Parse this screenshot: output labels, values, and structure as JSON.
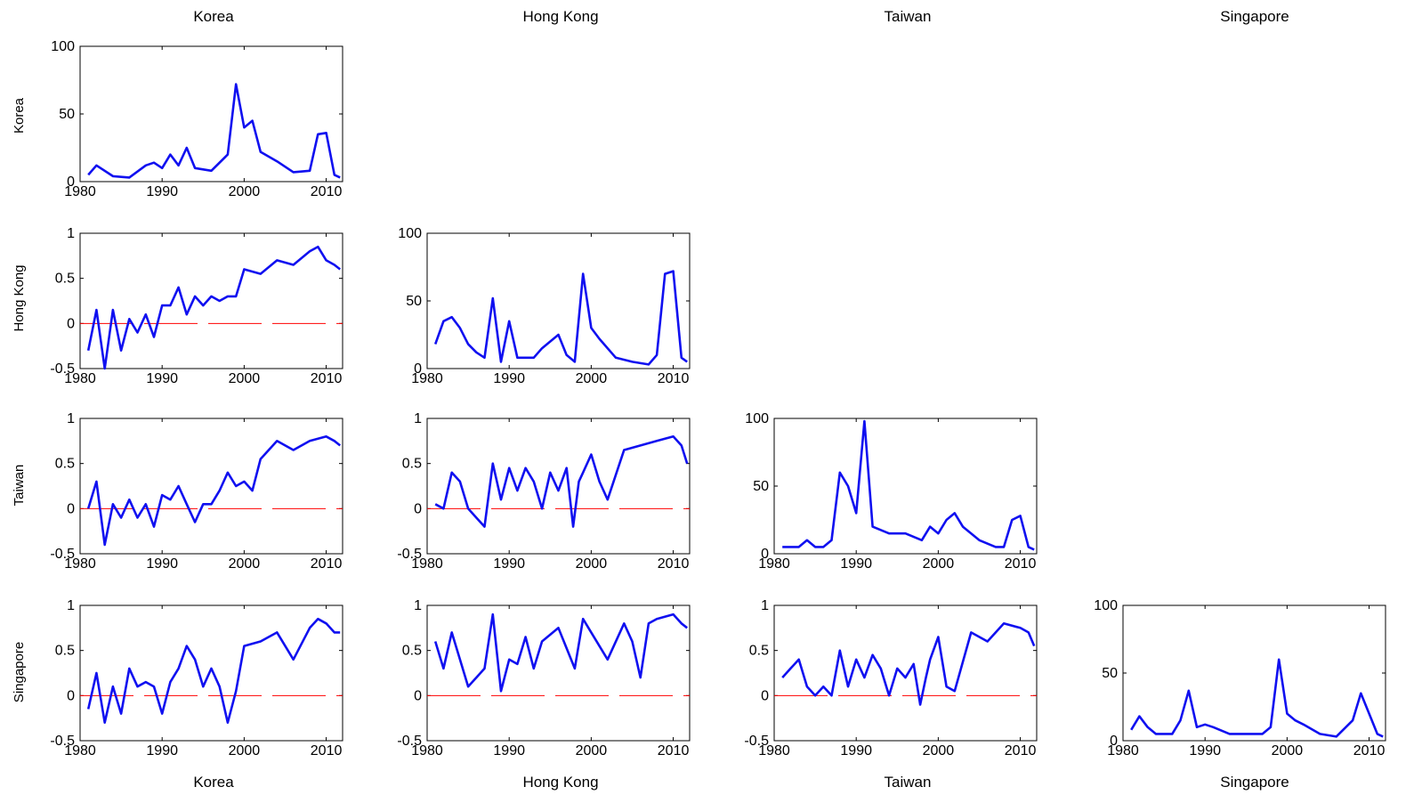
{
  "column_titles": [
    "Korea",
    "Hong Kong",
    "Taiwan",
    "Singapore"
  ],
  "row_labels": [
    "Korea",
    "Hong Kong",
    "Taiwan",
    "Singapore"
  ],
  "bottom_labels": [
    "Korea",
    "Hong Kong",
    "Taiwan",
    "Singapore"
  ],
  "colors": {
    "series": "#1010f0",
    "zero_line": "#ff0000",
    "axis": "#000000"
  },
  "chart_data": [
    {
      "row": 0,
      "col": 0,
      "type": "line",
      "variable": "Korea",
      "x_ticks": [
        "1980",
        "1990",
        "2000",
        "2010"
      ],
      "y_ticks": [
        "0",
        "50",
        "100"
      ],
      "ylim": [
        0,
        100
      ],
      "xlim": [
        1980,
        2012
      ],
      "zero_line": false,
      "x": [
        1981,
        1982,
        1984,
        1986,
        1988,
        1989,
        1990,
        1991,
        1992,
        1993,
        1994,
        1996,
        1998,
        1999,
        2000,
        2001,
        2002,
        2004,
        2006,
        2008,
        2009,
        2010,
        2011,
        2011.7
      ],
      "y": [
        5,
        12,
        4,
        3,
        12,
        14,
        10,
        20,
        12,
        25,
        10,
        8,
        20,
        72,
        40,
        45,
        22,
        15,
        7,
        8,
        35,
        36,
        5,
        3
      ]
    },
    {
      "row": 1,
      "col": 0,
      "type": "line",
      "variable": "Korea / Hong Kong",
      "x_ticks": [
        "1980",
        "1990",
        "2000",
        "2010"
      ],
      "y_ticks": [
        "-0.5",
        "0",
        "0.5",
        "1"
      ],
      "ylim": [
        -0.5,
        1
      ],
      "xlim": [
        1980,
        2012
      ],
      "zero_line": true,
      "x": [
        1981,
        1982,
        1983,
        1984,
        1985,
        1986,
        1987,
        1988,
        1989,
        1990,
        1991,
        1992,
        1993,
        1994,
        1995,
        1996,
        1997,
        1998,
        1999,
        2000,
        2002,
        2004,
        2006,
        2008,
        2009,
        2010,
        2011,
        2011.7
      ],
      "y": [
        -0.3,
        0.15,
        -0.5,
        0.15,
        -0.3,
        0.05,
        -0.1,
        0.1,
        -0.15,
        0.2,
        0.2,
        0.4,
        0.1,
        0.3,
        0.2,
        0.3,
        0.25,
        0.3,
        0.3,
        0.6,
        0.55,
        0.7,
        0.65,
        0.8,
        0.85,
        0.7,
        0.65,
        0.6
      ]
    },
    {
      "row": 1,
      "col": 1,
      "type": "line",
      "variable": "Hong Kong",
      "x_ticks": [
        "1980",
        "1990",
        "2000",
        "2010"
      ],
      "y_ticks": [
        "0",
        "50",
        "100"
      ],
      "ylim": [
        0,
        100
      ],
      "xlim": [
        1980,
        2012
      ],
      "zero_line": false,
      "x": [
        1981,
        1982,
        1983,
        1984,
        1985,
        1986,
        1987,
        1988,
        1989,
        1990,
        1991,
        1993,
        1994,
        1996,
        1997,
        1998,
        1999,
        2000,
        2001,
        2003,
        2005,
        2007,
        2008,
        2009,
        2010,
        2011,
        2011.7
      ],
      "y": [
        18,
        35,
        38,
        30,
        18,
        12,
        8,
        52,
        5,
        35,
        8,
        8,
        15,
        25,
        10,
        5,
        70,
        30,
        22,
        8,
        5,
        3,
        10,
        70,
        72,
        8,
        5
      ]
    },
    {
      "row": 2,
      "col": 0,
      "type": "line",
      "variable": "Korea / Taiwan",
      "x_ticks": [
        "1980",
        "1990",
        "2000",
        "2010"
      ],
      "y_ticks": [
        "-0.5",
        "0",
        "0.5",
        "1"
      ],
      "ylim": [
        -0.5,
        1
      ],
      "xlim": [
        1980,
        2012
      ],
      "zero_line": true,
      "x": [
        1981,
        1982,
        1983,
        1984,
        1985,
        1986,
        1987,
        1988,
        1989,
        1990,
        1991,
        1992,
        1993,
        1994,
        1995,
        1996,
        1997,
        1998,
        1999,
        2000,
        2001,
        2002,
        2004,
        2006,
        2008,
        2010,
        2011,
        2011.7
      ],
      "y": [
        0,
        0.3,
        -0.4,
        0.05,
        -0.1,
        0.1,
        -0.1,
        0.05,
        -0.2,
        0.15,
        0.1,
        0.25,
        0.05,
        -0.15,
        0.05,
        0.05,
        0.2,
        0.4,
        0.25,
        0.3,
        0.2,
        0.55,
        0.75,
        0.65,
        0.75,
        0.8,
        0.75,
        0.7
      ]
    },
    {
      "row": 2,
      "col": 1,
      "type": "line",
      "variable": "Hong Kong / Taiwan",
      "x_ticks": [
        "1980",
        "1990",
        "2000",
        "2010"
      ],
      "y_ticks": [
        "-0.5",
        "0",
        "0.5",
        "1"
      ],
      "ylim": [
        -0.5,
        1
      ],
      "xlim": [
        1980,
        2012
      ],
      "zero_line": true,
      "x": [
        1981,
        1982,
        1983,
        1984,
        1985,
        1986,
        1987,
        1988,
        1989,
        1990,
        1991,
        1992,
        1993,
        1994,
        1995,
        1996,
        1997,
        1997.8,
        1998.5,
        1999,
        2000,
        2001,
        2002,
        2004,
        2006,
        2008,
        2010,
        2011,
        2011.7
      ],
      "y": [
        0.05,
        0,
        0.4,
        0.3,
        0,
        -0.1,
        -0.2,
        0.5,
        0.1,
        0.45,
        0.2,
        0.45,
        0.3,
        0,
        0.4,
        0.2,
        0.45,
        -0.2,
        0.3,
        0.4,
        0.6,
        0.3,
        0.1,
        0.65,
        0.7,
        0.75,
        0.8,
        0.7,
        0.5
      ]
    },
    {
      "row": 2,
      "col": 2,
      "type": "line",
      "variable": "Taiwan",
      "x_ticks": [
        "1980",
        "1990",
        "2000",
        "2010"
      ],
      "y_ticks": [
        "0",
        "50",
        "100"
      ],
      "ylim": [
        0,
        100
      ],
      "xlim": [
        1980,
        2012
      ],
      "zero_line": false,
      "x": [
        1981,
        1982,
        1983,
        1984,
        1985,
        1986,
        1987,
        1988,
        1989,
        1990,
        1991,
        1992,
        1994,
        1996,
        1998,
        1999,
        2000,
        2001,
        2002,
        2003,
        2005,
        2007,
        2008,
        2009,
        2010,
        2011,
        2011.7
      ],
      "y": [
        5,
        5,
        5,
        10,
        5,
        5,
        10,
        60,
        50,
        30,
        98,
        20,
        15,
        15,
        10,
        20,
        15,
        25,
        30,
        20,
        10,
        5,
        5,
        25,
        28,
        5,
        3
      ]
    },
    {
      "row": 3,
      "col": 0,
      "type": "line",
      "variable": "Korea / Singapore",
      "x_ticks": [
        "1980",
        "1990",
        "2000",
        "2010"
      ],
      "y_ticks": [
        "-0.5",
        "0",
        "0.5",
        "1"
      ],
      "ylim": [
        -0.5,
        1
      ],
      "xlim": [
        1980,
        2012
      ],
      "zero_line": true,
      "x": [
        1981,
        1982,
        1983,
        1984,
        1985,
        1986,
        1987,
        1988,
        1989,
        1990,
        1991,
        1992,
        1993,
        1994,
        1995,
        1996,
        1997,
        1998,
        1999,
        2000,
        2002,
        2004,
        2006,
        2008,
        2009,
        2010,
        2011,
        2011.7
      ],
      "y": [
        -0.15,
        0.25,
        -0.3,
        0.1,
        -0.2,
        0.3,
        0.1,
        0.15,
        0.1,
        -0.2,
        0.15,
        0.3,
        0.55,
        0.4,
        0.1,
        0.3,
        0.1,
        -0.3,
        0.05,
        0.55,
        0.6,
        0.7,
        0.4,
        0.75,
        0.85,
        0.8,
        0.7,
        0.7
      ]
    },
    {
      "row": 3,
      "col": 1,
      "type": "line",
      "variable": "Hong Kong / Singapore",
      "x_ticks": [
        "1980",
        "1990",
        "2000",
        "2010"
      ],
      "y_ticks": [
        "-0.5",
        "0",
        "0.5",
        "1"
      ],
      "ylim": [
        -0.5,
        1
      ],
      "xlim": [
        1980,
        2012
      ],
      "zero_line": true,
      "x": [
        1981,
        1982,
        1983,
        1984,
        1985,
        1986,
        1987,
        1988,
        1989,
        1990,
        1991,
        1992,
        1993,
        1994,
        1996,
        1998,
        1999,
        2000,
        2002,
        2004,
        2005,
        2006,
        2007,
        2008,
        2010,
        2011,
        2011.7
      ],
      "y": [
        0.6,
        0.3,
        0.7,
        0.4,
        0.1,
        0.2,
        0.3,
        0.9,
        0.05,
        0.4,
        0.35,
        0.65,
        0.3,
        0.6,
        0.75,
        0.3,
        0.85,
        0.7,
        0.4,
        0.8,
        0.6,
        0.2,
        0.8,
        0.85,
        0.9,
        0.8,
        0.75
      ]
    },
    {
      "row": 3,
      "col": 2,
      "type": "line",
      "variable": "Taiwan / Singapore",
      "x_ticks": [
        "1980",
        "1990",
        "2000",
        "2010"
      ],
      "y_ticks": [
        "-0.5",
        "0",
        "0.5",
        "1"
      ],
      "ylim": [
        -0.5,
        1
      ],
      "xlim": [
        1980,
        2012
      ],
      "zero_line": true,
      "x": [
        1981,
        1982,
        1983,
        1984,
        1985,
        1986,
        1987,
        1988,
        1989,
        1990,
        1991,
        1992,
        1993,
        1994,
        1995,
        1996,
        1997,
        1997.8,
        1998.5,
        1999,
        2000,
        2001,
        2002,
        2004,
        2006,
        2008,
        2010,
        2011,
        2011.7
      ],
      "y": [
        0.2,
        0.3,
        0.4,
        0.1,
        0,
        0.1,
        0,
        0.5,
        0.1,
        0.4,
        0.2,
        0.45,
        0.3,
        0,
        0.3,
        0.2,
        0.35,
        -0.1,
        0.2,
        0.4,
        0.65,
        0.1,
        0.05,
        0.7,
        0.6,
        0.8,
        0.75,
        0.7,
        0.55
      ]
    },
    {
      "row": 3,
      "col": 3,
      "type": "line",
      "variable": "Singapore",
      "x_ticks": [
        "1980",
        "1990",
        "2000",
        "2010"
      ],
      "y_ticks": [
        "0",
        "50",
        "100"
      ],
      "ylim": [
        0,
        100
      ],
      "xlim": [
        1980,
        2012
      ],
      "zero_line": false,
      "x": [
        1981,
        1982,
        1983,
        1984,
        1986,
        1987,
        1988,
        1989,
        1990,
        1991,
        1993,
        1995,
        1997,
        1998,
        1999,
        2000,
        2001,
        2002,
        2004,
        2006,
        2008,
        2009,
        2010,
        2011,
        2011.7
      ],
      "y": [
        8,
        18,
        10,
        5,
        5,
        15,
        37,
        10,
        12,
        10,
        5,
        5,
        5,
        10,
        60,
        20,
        15,
        12,
        5,
        3,
        15,
        35,
        20,
        5,
        3
      ]
    }
  ]
}
